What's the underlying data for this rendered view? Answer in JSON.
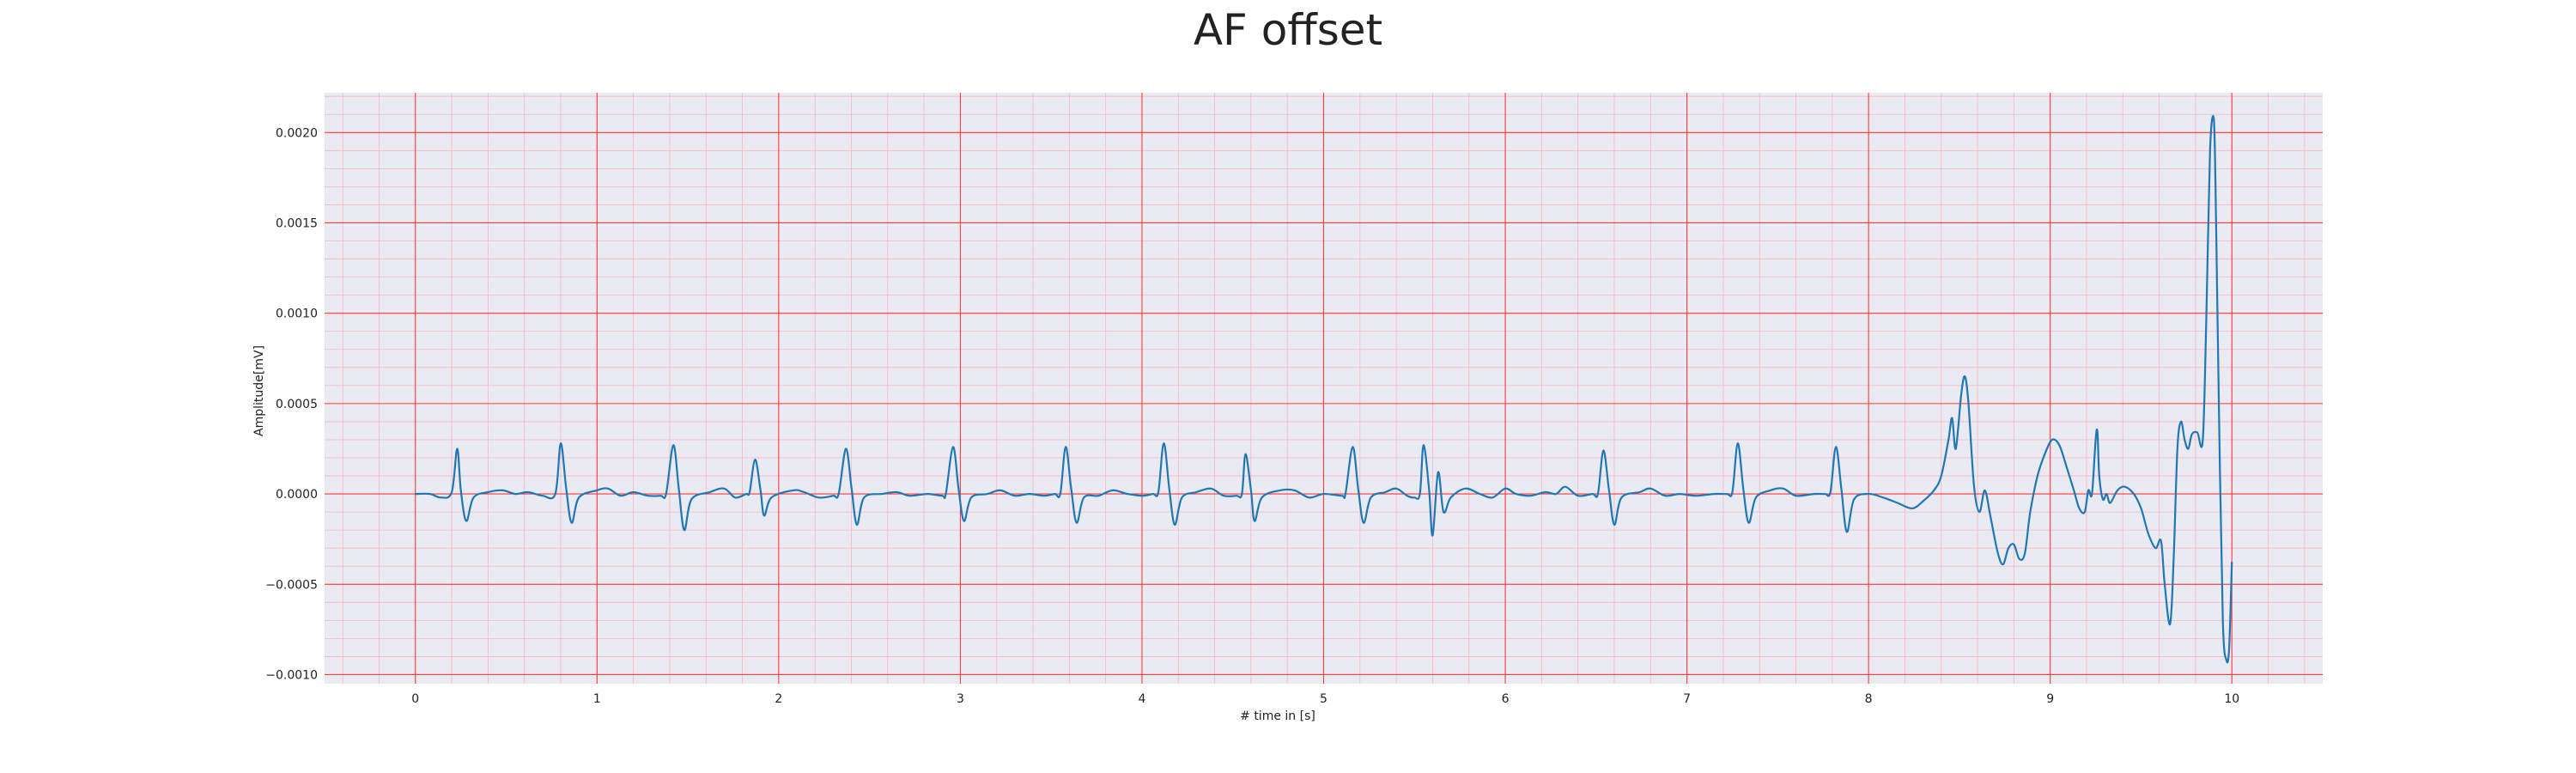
{
  "chart_data": {
    "type": "line",
    "title": "AF offset",
    "xlabel": "# time in [s]",
    "ylabel": "Amplitude[mV]",
    "xlim": [
      -0.5,
      10.5
    ],
    "ylim": [
      -0.00105,
      0.00222
    ],
    "x_ticks": [
      0,
      1,
      2,
      3,
      4,
      5,
      6,
      7,
      8,
      9,
      10
    ],
    "x_tick_labels": [
      "0",
      "1",
      "2",
      "3",
      "4",
      "5",
      "6",
      "7",
      "8",
      "9",
      "10"
    ],
    "y_ticks": [
      -0.001,
      -0.0005,
      0.0,
      0.0005,
      0.001,
      0.0015,
      0.002
    ],
    "y_tick_labels": [
      "−0.0010",
      "−0.0005",
      "0.0000",
      "0.0005",
      "0.0010",
      "0.0015",
      "0.0020"
    ],
    "grid": true,
    "minor_grid": true,
    "background_color": "#eaeaf2",
    "major_grid_color": "#ff3b3b",
    "minor_grid_color": "#f7b6c2",
    "line_color": "#1f77b4",
    "series": [
      {
        "values": [
          [
            0.0,
            0.0
          ],
          [
            0.08,
            0.0
          ],
          [
            0.14,
            -2e-05
          ],
          [
            0.2,
            1e-05
          ],
          [
            0.23,
            0.00025
          ],
          [
            0.25,
            2e-05
          ],
          [
            0.28,
            -0.00015
          ],
          [
            0.32,
            -2e-05
          ],
          [
            0.4,
            1e-05
          ],
          [
            0.48,
            2e-05
          ],
          [
            0.55,
            0.0
          ],
          [
            0.62,
            1e-05
          ],
          [
            0.7,
            -1e-05
          ],
          [
            0.77,
            0.0
          ],
          [
            0.8,
            0.00028
          ],
          [
            0.83,
            3e-05
          ],
          [
            0.86,
            -0.00016
          ],
          [
            0.9,
            -2e-05
          ],
          [
            1.0,
            2e-05
          ],
          [
            1.06,
            3e-05
          ],
          [
            1.13,
            -1e-05
          ],
          [
            1.2,
            1e-05
          ],
          [
            1.28,
            -1e-05
          ],
          [
            1.35,
            -1e-05
          ],
          [
            1.38,
            0.0
          ],
          [
            1.42,
            0.00027
          ],
          [
            1.45,
            3e-05
          ],
          [
            1.48,
            -0.0002
          ],
          [
            1.52,
            -3e-05
          ],
          [
            1.62,
            1e-05
          ],
          [
            1.7,
            3e-05
          ],
          [
            1.76,
            -2e-05
          ],
          [
            1.82,
            0.0
          ],
          [
            1.84,
            1e-05
          ],
          [
            1.87,
            0.00019
          ],
          [
            1.9,
            2e-05
          ],
          [
            1.92,
            -0.00012
          ],
          [
            1.96,
            -2e-05
          ],
          [
            2.08,
            2e-05
          ],
          [
            2.14,
            1e-05
          ],
          [
            2.22,
            -2e-05
          ],
          [
            2.3,
            -1e-05
          ],
          [
            2.33,
            0.0
          ],
          [
            2.37,
            0.00025
          ],
          [
            2.4,
            4e-05
          ],
          [
            2.43,
            -0.00017
          ],
          [
            2.47,
            -2e-05
          ],
          [
            2.57,
            0.0
          ],
          [
            2.65,
            1e-05
          ],
          [
            2.72,
            -1e-05
          ],
          [
            2.82,
            0.0
          ],
          [
            2.9,
            -1e-05
          ],
          [
            2.92,
            0.0
          ],
          [
            2.96,
            0.00026
          ],
          [
            2.99,
            3e-05
          ],
          [
            3.02,
            -0.00015
          ],
          [
            3.06,
            -2e-05
          ],
          [
            3.15,
            0.0
          ],
          [
            3.22,
            2e-05
          ],
          [
            3.3,
            -1e-05
          ],
          [
            3.38,
            0.0
          ],
          [
            3.46,
            -1e-05
          ],
          [
            3.52,
            0.0
          ],
          [
            3.55,
            0.0
          ],
          [
            3.58,
            0.00026
          ],
          [
            3.61,
            3e-05
          ],
          [
            3.64,
            -0.00016
          ],
          [
            3.68,
            -2e-05
          ],
          [
            3.76,
            -1e-05
          ],
          [
            3.84,
            2e-05
          ],
          [
            3.92,
            0.0
          ],
          [
            4.0,
            -1e-05
          ],
          [
            4.06,
            0.0
          ],
          [
            4.09,
            1e-05
          ],
          [
            4.12,
            0.00028
          ],
          [
            4.15,
            3e-05
          ],
          [
            4.18,
            -0.00017
          ],
          [
            4.22,
            -2e-05
          ],
          [
            4.3,
            1e-05
          ],
          [
            4.38,
            3e-05
          ],
          [
            4.45,
            -1e-05
          ],
          [
            4.52,
            -1e-05
          ],
          [
            4.55,
            0.0
          ],
          [
            4.57,
            0.00022
          ],
          [
            4.6,
            2e-05
          ],
          [
            4.62,
            -0.00015
          ],
          [
            4.66,
            -2e-05
          ],
          [
            4.76,
            2e-05
          ],
          [
            4.84,
            2e-05
          ],
          [
            4.92,
            -2e-05
          ],
          [
            5.0,
            0.0
          ],
          [
            5.1,
            -1e-05
          ],
          [
            5.12,
            0.0
          ],
          [
            5.16,
            0.00026
          ],
          [
            5.19,
            3e-05
          ],
          [
            5.22,
            -0.00016
          ],
          [
            5.26,
            -2e-05
          ],
          [
            5.34,
            1e-05
          ],
          [
            5.4,
            3e-05
          ],
          [
            5.46,
            -1e-05
          ],
          [
            5.5,
            -2e-05
          ],
          [
            5.53,
            0.0
          ],
          [
            5.55,
            0.00027
          ],
          [
            5.58,
            3e-05
          ],
          [
            5.6,
            -0.00023
          ],
          [
            5.63,
            0.00012
          ],
          [
            5.66,
            -0.0001
          ],
          [
            5.7,
            -2e-05
          ],
          [
            5.78,
            3e-05
          ],
          [
            5.86,
            0.0
          ],
          [
            5.93,
            -2e-05
          ],
          [
            6.0,
            3e-05
          ],
          [
            6.06,
            0.0
          ],
          [
            6.14,
            -1e-05
          ],
          [
            6.22,
            1e-05
          ],
          [
            6.28,
            0.0
          ],
          [
            6.33,
            4e-05
          ],
          [
            6.4,
            -1e-05
          ],
          [
            6.48,
            0.0
          ],
          [
            6.51,
            0.0
          ],
          [
            6.54,
            0.00024
          ],
          [
            6.57,
            3e-05
          ],
          [
            6.6,
            -0.00017
          ],
          [
            6.64,
            -2e-05
          ],
          [
            6.74,
            1e-05
          ],
          [
            6.8,
            3e-05
          ],
          [
            6.88,
            -1e-05
          ],
          [
            6.96,
            0.0
          ],
          [
            7.05,
            -1e-05
          ],
          [
            7.15,
            0.0
          ],
          [
            7.22,
            0.0
          ],
          [
            7.25,
            1e-05
          ],
          [
            7.28,
            0.00028
          ],
          [
            7.31,
            3e-05
          ],
          [
            7.34,
            -0.00016
          ],
          [
            7.38,
            -2e-05
          ],
          [
            7.46,
            2e-05
          ],
          [
            7.53,
            3e-05
          ],
          [
            7.6,
            -1e-05
          ],
          [
            7.7,
            0.0
          ],
          [
            7.76,
            0.0
          ],
          [
            7.79,
            1e-05
          ],
          [
            7.82,
            0.00026
          ],
          [
            7.85,
            3e-05
          ],
          [
            7.88,
            -0.00021
          ],
          [
            7.92,
            -3e-05
          ],
          [
            8.0,
            0.0
          ],
          [
            8.08,
            -2e-05
          ],
          [
            8.16,
            -5e-05
          ],
          [
            8.24,
            -8e-05
          ],
          [
            8.3,
            -4e-05
          ],
          [
            8.36,
            2e-05
          ],
          [
            8.4,
            0.0001
          ],
          [
            8.44,
            0.0003
          ],
          [
            8.46,
            0.00042
          ],
          [
            8.48,
            0.00025
          ],
          [
            8.51,
            0.00055
          ],
          [
            8.53,
            0.00065
          ],
          [
            8.55,
            0.0005
          ],
          [
            8.58,
            5e-05
          ],
          [
            8.61,
            -0.0001
          ],
          [
            8.64,
            2e-05
          ],
          [
            8.67,
            -0.00012
          ],
          [
            8.71,
            -0.00032
          ],
          [
            8.74,
            -0.00039
          ],
          [
            8.77,
            -0.0003
          ],
          [
            8.8,
            -0.00028
          ],
          [
            8.83,
            -0.00036
          ],
          [
            8.86,
            -0.00033
          ],
          [
            8.89,
            -0.0001
          ],
          [
            8.93,
            0.0001
          ],
          [
            8.97,
            0.00022
          ],
          [
            9.01,
            0.0003
          ],
          [
            9.05,
            0.00027
          ],
          [
            9.09,
            0.00015
          ],
          [
            9.13,
            2e-05
          ],
          [
            9.16,
            -8e-05
          ],
          [
            9.19,
            -0.0001
          ],
          [
            9.21,
            2e-05
          ],
          [
            9.23,
            0.0
          ],
          [
            9.25,
            0.0003
          ],
          [
            9.26,
            0.00034
          ],
          [
            9.27,
            0.0001
          ],
          [
            9.29,
            -3e-05
          ],
          [
            9.31,
            0.0
          ],
          [
            9.33,
            -5e-05
          ],
          [
            9.37,
            2e-05
          ],
          [
            9.41,
            4e-05
          ],
          [
            9.46,
            0.0
          ],
          [
            9.5,
            -8e-05
          ],
          [
            9.54,
            -0.00022
          ],
          [
            9.58,
            -0.0003
          ],
          [
            9.61,
            -0.00026
          ],
          [
            9.63,
            -0.0005
          ],
          [
            9.66,
            -0.00072
          ],
          [
            9.68,
            -0.00035
          ],
          [
            9.7,
            0.00025
          ],
          [
            9.72,
            0.0004
          ],
          [
            9.74,
            0.0003
          ],
          [
            9.76,
            0.00025
          ],
          [
            9.78,
            0.00033
          ],
          [
            9.81,
            0.00034
          ],
          [
            9.84,
            0.0003
          ],
          [
            9.86,
            0.001
          ],
          [
            9.88,
            0.0019
          ],
          [
            9.9,
            0.00208
          ],
          [
            9.91,
            0.0017
          ],
          [
            9.93,
            0.0004
          ],
          [
            9.95,
            -0.0007
          ],
          [
            9.97,
            -0.00092
          ],
          [
            9.985,
            -0.00085
          ],
          [
            10.0,
            -0.00038
          ]
        ]
      }
    ]
  }
}
